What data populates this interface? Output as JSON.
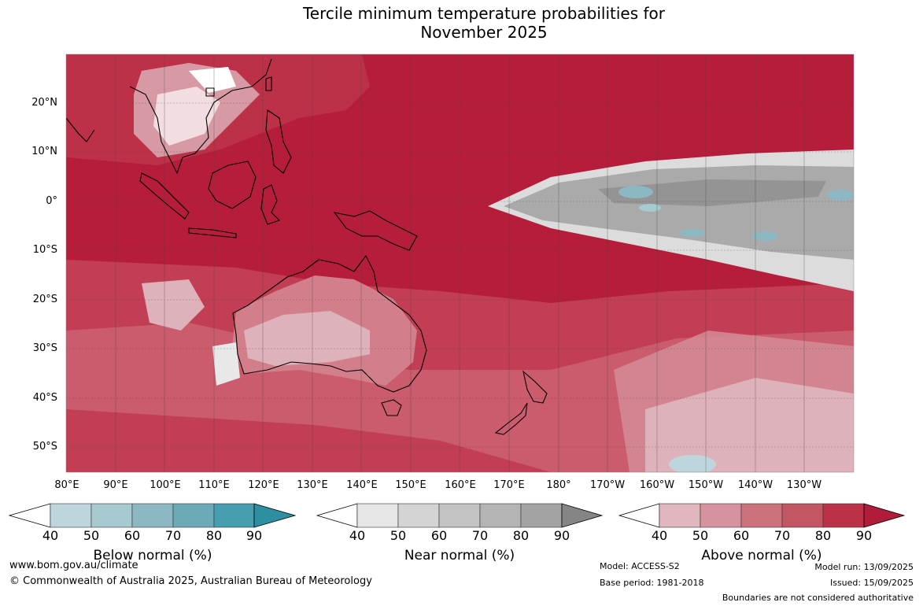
{
  "title_line1": "Tercile minimum temperature probabilities for",
  "title_line2": "November 2025",
  "lat_labels": [
    "20°N",
    "10°N",
    "0°",
    "10°S",
    "20°S",
    "30°S",
    "40°S",
    "50°S"
  ],
  "lon_labels": [
    "80°E",
    "90°E",
    "100°E",
    "110°E",
    "120°E",
    "130°E",
    "140°E",
    "150°E",
    "160°E",
    "170°E",
    "180°",
    "170°W",
    "160°W",
    "150°W",
    "140°W",
    "130°W"
  ],
  "colorbars": [
    {
      "name": "Below normal (%)",
      "ticks": [
        "40",
        "50",
        "60",
        "70",
        "80",
        "90"
      ],
      "colors": [
        "#ffffff",
        "#bdd6dd",
        "#a6cad0",
        "#8cb8c3",
        "#6ea9b7",
        "#469fb0",
        "#2e8fa1"
      ]
    },
    {
      "name": "Near normal (%)",
      "ticks": [
        "40",
        "50",
        "60",
        "70",
        "80",
        "90"
      ],
      "colors": [
        "#ffffff",
        "#e6e6e6",
        "#d4d4d4",
        "#c3c3c3",
        "#b4b4b4",
        "#a3a3a3",
        "#858585"
      ]
    },
    {
      "name": "Above normal (%)",
      "ticks": [
        "40",
        "50",
        "60",
        "70",
        "80",
        "90"
      ],
      "colors": [
        "#ffffff",
        "#e1b7bf",
        "#d6939d",
        "#cb727d",
        "#c25662",
        "#bb3146",
        "#b01c39"
      ]
    }
  ],
  "footer": {
    "website": "www.bom.gov.au/climate",
    "copyright": "© Commonwealth of Australia 2025, Australian Bureau of Meteorology",
    "model": "Model: ACCESS-S2",
    "base_period": "Base period: 1981-2018",
    "model_run": "Model run: 13/09/2025",
    "issued": "Issued: 15/09/2025",
    "disclaimer": "Boundaries are not considered authoritative"
  }
}
